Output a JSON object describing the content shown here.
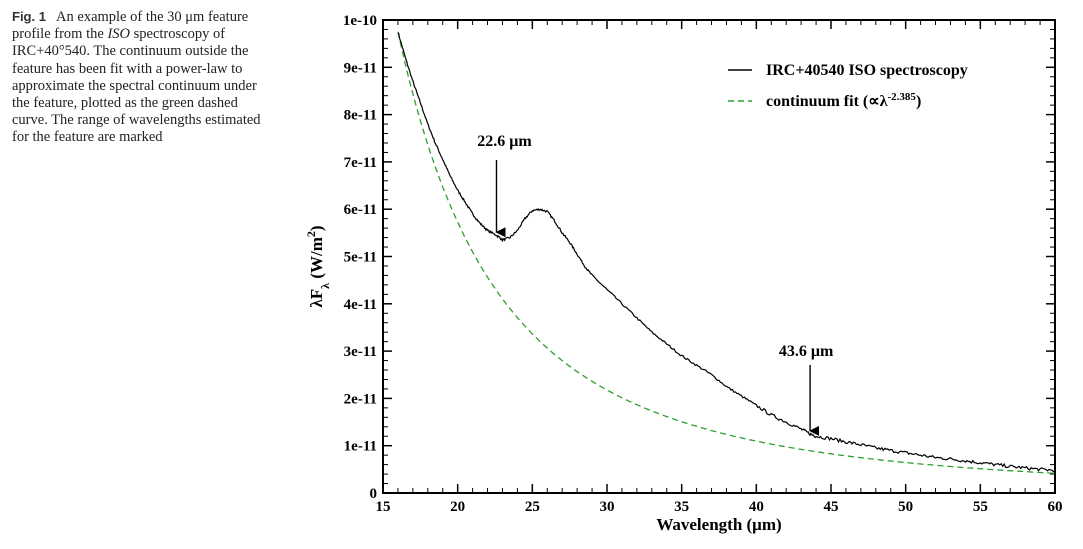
{
  "caption": {
    "label": "Fig. 1",
    "text_1": "An example of the 30 μm feature profile from the ",
    "text_italic": "ISO",
    "text_2": " spectroscopy of IRC+40°540. The continuum outside the feature has been fit with a power-law to approximate the spectral continuum under the feature, plotted as the green dashed curve. The range of wavelengths estimated for the feature are marked"
  },
  "chart_data": {
    "type": "line",
    "title": "",
    "xlabel": "Wavelength (μm)",
    "ylabel_main": "λF",
    "ylabel_sub": "λ",
    "ylabel_unit": " (W/m",
    "ylabel_sup": "2",
    "ylabel_close": ")",
    "xlim": [
      15,
      60
    ],
    "ylim": [
      0,
      1e-10
    ],
    "x_ticks": [
      15,
      20,
      25,
      30,
      35,
      40,
      45,
      50,
      55,
      60
    ],
    "x_tick_labels": [
      "15",
      "20",
      "25",
      "30",
      "35",
      "40",
      "45",
      "50",
      "55",
      "60"
    ],
    "y_ticks": [
      0,
      1e-11,
      2e-11,
      3e-11,
      4e-11,
      5e-11,
      6e-11,
      7e-11,
      8e-11,
      9e-11,
      1e-10
    ],
    "y_tick_labels": [
      "0",
      "1e-11",
      "2e-11",
      "3e-11",
      "4e-11",
      "5e-11",
      "6e-11",
      "7e-11",
      "8e-11",
      "9e-11",
      "1e-10"
    ],
    "grid": false,
    "legend_position": "top-right",
    "series": [
      {
        "name": "IRC+40540 ISO spectroscopy",
        "color": "#000000",
        "style": "solid",
        "x": [
          16.0,
          16.5,
          17.0,
          17.5,
          18.0,
          18.5,
          19.0,
          19.5,
          20.0,
          20.5,
          21.0,
          21.5,
          22.0,
          22.6,
          23.0,
          23.5,
          24.0,
          24.5,
          25.0,
          25.5,
          26.0,
          26.5,
          27.0,
          27.5,
          28.0,
          28.5,
          29.0,
          30.0,
          31.0,
          32.0,
          33.0,
          34.0,
          35.0,
          36.0,
          37.0,
          38.0,
          39.0,
          40.0,
          41.0,
          42.0,
          43.0,
          43.6,
          44.0,
          45.0,
          46.0,
          47.0,
          48.0,
          49.0,
          50.0,
          51.0,
          52.0,
          53.0,
          54.0,
          55.0,
          56.0,
          57.0,
          58.0,
          59.0,
          60.0
        ],
        "y": [
          9.75e-11,
          9.2e-11,
          8.7e-11,
          8.25e-11,
          7.8e-11,
          7.4e-11,
          7.05e-11,
          6.7e-11,
          6.4e-11,
          6.15e-11,
          5.9e-11,
          5.7e-11,
          5.55e-11,
          5.45e-11,
          5.35e-11,
          5.4e-11,
          5.55e-11,
          5.8e-11,
          5.97e-11,
          6e-11,
          5.95e-11,
          5.75e-11,
          5.5e-11,
          5.3e-11,
          5.05e-11,
          4.8e-11,
          4.6e-11,
          4.3e-11,
          4e-11,
          3.7e-11,
          3.4e-11,
          3.15e-11,
          2.9e-11,
          2.7e-11,
          2.5e-11,
          2.25e-11,
          2.05e-11,
          1.85e-11,
          1.65e-11,
          1.5e-11,
          1.35e-11,
          1.25e-11,
          1.2e-11,
          1.15e-11,
          1.08e-11,
          1.02e-11,
          9.5e-12,
          9e-12,
          8.5e-12,
          8e-12,
          7.5e-12,
          7.2e-12,
          6.8e-12,
          6.4e-12,
          6e-12,
          5.6e-12,
          5.3e-12,
          5e-12,
          4.8e-12
        ]
      },
      {
        "name": "continuum fit (∝λ",
        "name_sup": "-2.385",
        "name_close": ")",
        "color": "#2ca02c",
        "style": "dashed",
        "model": {
          "form": "power-law",
          "exponent": -2.385,
          "y_at_x16": 9.75e-11
        }
      }
    ],
    "annotations": [
      {
        "text": "22.6 μm",
        "x": 22.6,
        "y": 5.45e-11
      },
      {
        "text": "43.6 μm",
        "x": 43.6,
        "y": 1.25e-11
      }
    ]
  }
}
